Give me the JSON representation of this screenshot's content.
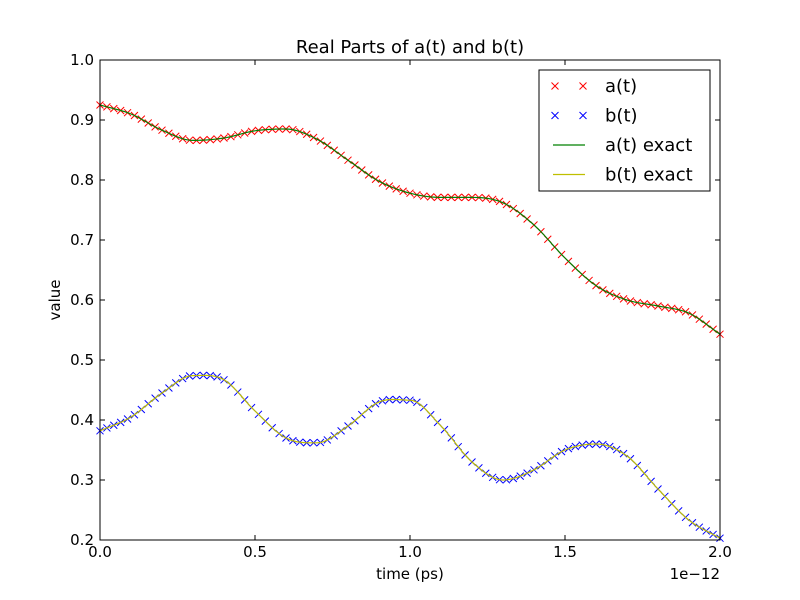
{
  "chart_data": {
    "type": "line",
    "title": "Real Parts of a(t) and b(t)",
    "xlabel": "time (ps)",
    "ylabel": "value",
    "offset_text": "1e−12",
    "xlim": [
      0.0,
      2.0
    ],
    "ylim": [
      0.2,
      1.0
    ],
    "x_scale_exponent": -12,
    "xticks": [
      0.0,
      0.5,
      1.0,
      1.5,
      2.0
    ],
    "xtick_labels": [
      "0.0",
      "0.5",
      "1.0",
      "1.5",
      "2.0"
    ],
    "yticks": [
      0.2,
      0.3,
      0.4,
      0.5,
      0.6,
      0.7,
      0.8,
      0.9,
      1.0
    ],
    "ytick_labels": [
      "0.2",
      "0.3",
      "0.4",
      "0.5",
      "0.6",
      "0.7",
      "0.8",
      "0.9",
      "1.0"
    ],
    "grid": false,
    "legend_position": "top-right",
    "x": [
      0.0,
      0.1,
      0.2,
      0.3,
      0.4,
      0.5,
      0.6,
      0.7,
      0.8,
      0.9,
      1.0,
      1.1,
      1.2,
      1.3,
      1.4,
      1.5,
      1.6,
      1.7,
      1.8,
      1.9,
      2.0
    ],
    "series": [
      {
        "name": "a(t)",
        "marker": "x",
        "color": "#ff0000",
        "values": [
          0.925,
          0.91,
          0.883,
          0.866,
          0.87,
          0.882,
          0.885,
          0.868,
          0.833,
          0.798,
          0.778,
          0.771,
          0.771,
          0.762,
          0.725,
          0.67,
          0.624,
          0.6,
          0.59,
          0.578,
          0.543
        ]
      },
      {
        "name": "b(t)",
        "marker": "x",
        "color": "#0000ff",
        "values": [
          0.382,
          0.405,
          0.445,
          0.474,
          0.467,
          0.415,
          0.37,
          0.362,
          0.39,
          0.43,
          0.433,
          0.39,
          0.33,
          0.3,
          0.317,
          0.35,
          0.36,
          0.34,
          0.285,
          0.233,
          0.203
        ]
      },
      {
        "name": "a(t) exact",
        "marker": "line",
        "color": "#008000",
        "values": [
          0.925,
          0.91,
          0.883,
          0.866,
          0.87,
          0.882,
          0.885,
          0.868,
          0.833,
          0.798,
          0.778,
          0.771,
          0.771,
          0.762,
          0.725,
          0.67,
          0.624,
          0.6,
          0.59,
          0.578,
          0.543
        ]
      },
      {
        "name": "b(t) exact",
        "marker": "line",
        "color": "#bfbf00",
        "values": [
          0.382,
          0.405,
          0.445,
          0.474,
          0.467,
          0.415,
          0.37,
          0.362,
          0.39,
          0.43,
          0.433,
          0.39,
          0.33,
          0.3,
          0.317,
          0.35,
          0.36,
          0.34,
          0.285,
          0.233,
          0.203
        ]
      }
    ]
  }
}
